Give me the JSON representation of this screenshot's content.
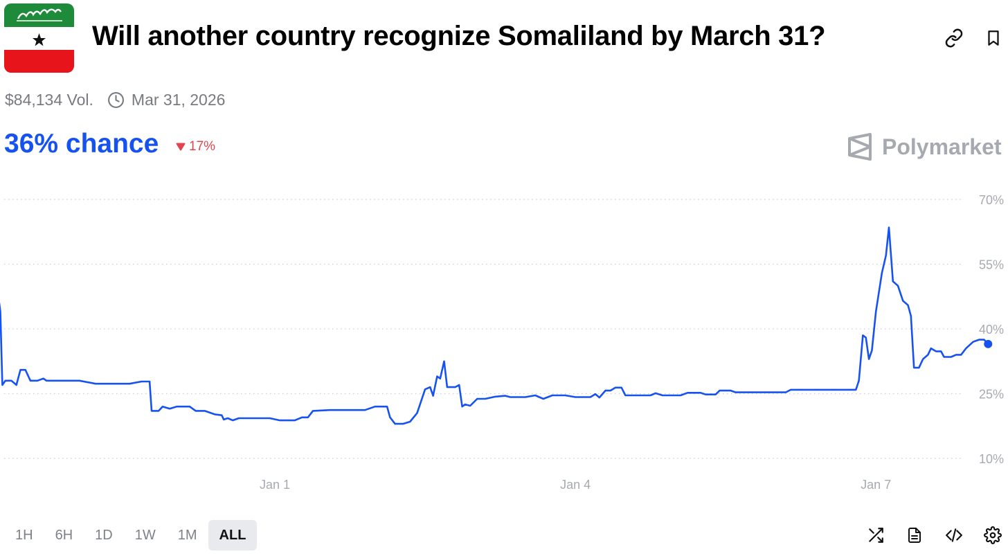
{
  "market": {
    "title": "Will another country recognize Somaliland by March 31?",
    "volume": "$84,134 Vol.",
    "end_date": "Mar 31, 2026",
    "chance": "36% chance",
    "change": "17%",
    "change_direction": "down",
    "brand": "Polymarket"
  },
  "colors": {
    "accent": "#1652f0",
    "negative": "#e0454d",
    "muted": "#777a80",
    "flag_green": "#1e8b3a",
    "flag_red": "#e8141c"
  },
  "header_icons": [
    "link-icon",
    "bookmark-icon"
  ],
  "footer_icons": [
    "shuffle-icon",
    "document-icon",
    "code-icon",
    "gear-icon"
  ],
  "ranges": {
    "items": [
      "1H",
      "6H",
      "1D",
      "1W",
      "1M",
      "ALL"
    ],
    "selected": "ALL"
  },
  "chart_data": {
    "type": "line",
    "title": "",
    "xlabel": "",
    "ylabel": "",
    "x_ticks": [
      "Jan 1",
      "Jan 4",
      "Jan 7"
    ],
    "y_ticks": [
      10,
      25,
      40,
      55,
      70
    ],
    "y_tick_labels": [
      "10%",
      "25%",
      "40%",
      "55%",
      "70%"
    ],
    "ylim": [
      10,
      70
    ],
    "xlim": [
      -2.8,
      6.8
    ],
    "grid": "horizontal-dotted",
    "series": [
      {
        "name": "",
        "points": [
          [
            -2.79,
            53
          ],
          [
            -2.74,
            44
          ],
          [
            -2.72,
            27
          ],
          [
            -2.69,
            28
          ],
          [
            -2.63,
            28
          ],
          [
            -2.58,
            27
          ],
          [
            -2.54,
            30.5
          ],
          [
            -2.49,
            30.5
          ],
          [
            -2.44,
            28
          ],
          [
            -2.37,
            28
          ],
          [
            -2.31,
            28.5
          ],
          [
            -2.28,
            28
          ],
          [
            -2.2,
            28
          ],
          [
            -1.95,
            28
          ],
          [
            -1.79,
            27.3
          ],
          [
            -1.45,
            27.3
          ],
          [
            -1.33,
            27.8
          ],
          [
            -1.25,
            27.8
          ],
          [
            -1.23,
            21
          ],
          [
            -1.16,
            21
          ],
          [
            -1.12,
            22
          ],
          [
            -1.05,
            21.5
          ],
          [
            -0.98,
            22
          ],
          [
            -0.85,
            22
          ],
          [
            -0.79,
            21
          ],
          [
            -0.7,
            21
          ],
          [
            -0.6,
            20.2
          ],
          [
            -0.53,
            20
          ],
          [
            -0.51,
            19
          ],
          [
            -0.47,
            19.3
          ],
          [
            -0.42,
            18.8
          ],
          [
            -0.36,
            19.3
          ],
          [
            -0.25,
            19.3
          ],
          [
            -0.05,
            19.3
          ],
          [
            0.05,
            18.8
          ],
          [
            0.2,
            18.8
          ],
          [
            0.27,
            19.5
          ],
          [
            0.33,
            19.5
          ],
          [
            0.38,
            21
          ],
          [
            0.55,
            21.2
          ],
          [
            0.9,
            21.2
          ],
          [
            1.0,
            22
          ],
          [
            1.12,
            22
          ],
          [
            1.15,
            19.5
          ],
          [
            1.2,
            18
          ],
          [
            1.28,
            18
          ],
          [
            1.35,
            18.5
          ],
          [
            1.42,
            20.5
          ],
          [
            1.5,
            26
          ],
          [
            1.55,
            26.5
          ],
          [
            1.58,
            24.5
          ],
          [
            1.62,
            29
          ],
          [
            1.65,
            28.5
          ],
          [
            1.69,
            32.5
          ],
          [
            1.72,
            26.5
          ],
          [
            1.8,
            26.5
          ],
          [
            1.84,
            27
          ],
          [
            1.87,
            22
          ],
          [
            1.9,
            22.5
          ],
          [
            1.95,
            22.2
          ],
          [
            2.02,
            23.8
          ],
          [
            2.1,
            23.8
          ],
          [
            2.2,
            24.3
          ],
          [
            2.3,
            24.5
          ],
          [
            2.35,
            24.2
          ],
          [
            2.5,
            24.2
          ],
          [
            2.6,
            24.6
          ],
          [
            2.68,
            23.8
          ],
          [
            2.77,
            24.6
          ],
          [
            2.9,
            24.6
          ],
          [
            3.0,
            24.2
          ],
          [
            3.15,
            24.2
          ],
          [
            3.2,
            24.9
          ],
          [
            3.24,
            24.1
          ],
          [
            3.3,
            25.7
          ],
          [
            3.35,
            25.7
          ],
          [
            3.4,
            26.4
          ],
          [
            3.46,
            26.4
          ],
          [
            3.5,
            24.6
          ],
          [
            3.75,
            24.6
          ],
          [
            3.8,
            25.1
          ],
          [
            3.87,
            24.6
          ],
          [
            4.05,
            24.6
          ],
          [
            4.12,
            25.2
          ],
          [
            4.25,
            25.2
          ],
          [
            4.3,
            24.8
          ],
          [
            4.4,
            24.8
          ],
          [
            4.44,
            25.7
          ],
          [
            4.55,
            25.7
          ],
          [
            4.6,
            25.3
          ],
          [
            5.1,
            25.3
          ],
          [
            5.15,
            25.9
          ],
          [
            5.8,
            25.9
          ],
          [
            5.83,
            28
          ],
          [
            5.87,
            38.5
          ],
          [
            5.9,
            38
          ],
          [
            5.93,
            33
          ],
          [
            5.96,
            35
          ],
          [
            6.0,
            44
          ],
          [
            6.06,
            53
          ],
          [
            6.1,
            57
          ],
          [
            6.13,
            63.5
          ],
          [
            6.17,
            51
          ],
          [
            6.22,
            50
          ],
          [
            6.27,
            46.5
          ],
          [
            6.32,
            45.5
          ],
          [
            6.35,
            43
          ],
          [
            6.38,
            31
          ],
          [
            6.43,
            31
          ],
          [
            6.47,
            33
          ],
          [
            6.52,
            34
          ],
          [
            6.55,
            35.5
          ],
          [
            6.6,
            34.8
          ],
          [
            6.65,
            34.8
          ],
          [
            6.68,
            33.5
          ],
          [
            6.75,
            33.5
          ],
          [
            6.8,
            34
          ],
          [
            6.85,
            34
          ],
          [
            6.9,
            35.5
          ],
          [
            6.97,
            37
          ],
          [
            7.03,
            37.5
          ],
          [
            7.08,
            37.5
          ],
          [
            7.12,
            36.5
          ]
        ]
      }
    ],
    "last_point": [
      7.12,
      36.5
    ]
  }
}
